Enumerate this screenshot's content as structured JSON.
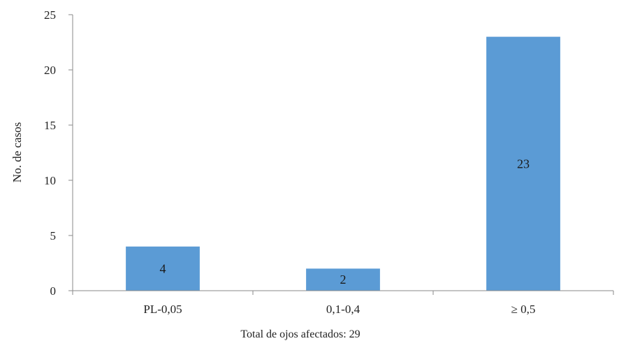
{
  "chart_data": {
    "type": "bar",
    "title": "",
    "xlabel": "Total de ojos afectados: 29",
    "ylabel": "No. de casos",
    "categories": [
      "PL-0,05",
      "0,1-0,4",
      "≥ 0,5"
    ],
    "values": [
      4,
      2,
      23
    ],
    "data_labels": [
      "4",
      "2",
      "23"
    ],
    "ylim": [
      0,
      25
    ],
    "yticks": [
      0,
      5,
      10,
      15,
      20,
      25
    ],
    "grid": false,
    "legend": "none",
    "bar_color": "#5b9bd5",
    "axis_color": "#8a8a8a"
  }
}
